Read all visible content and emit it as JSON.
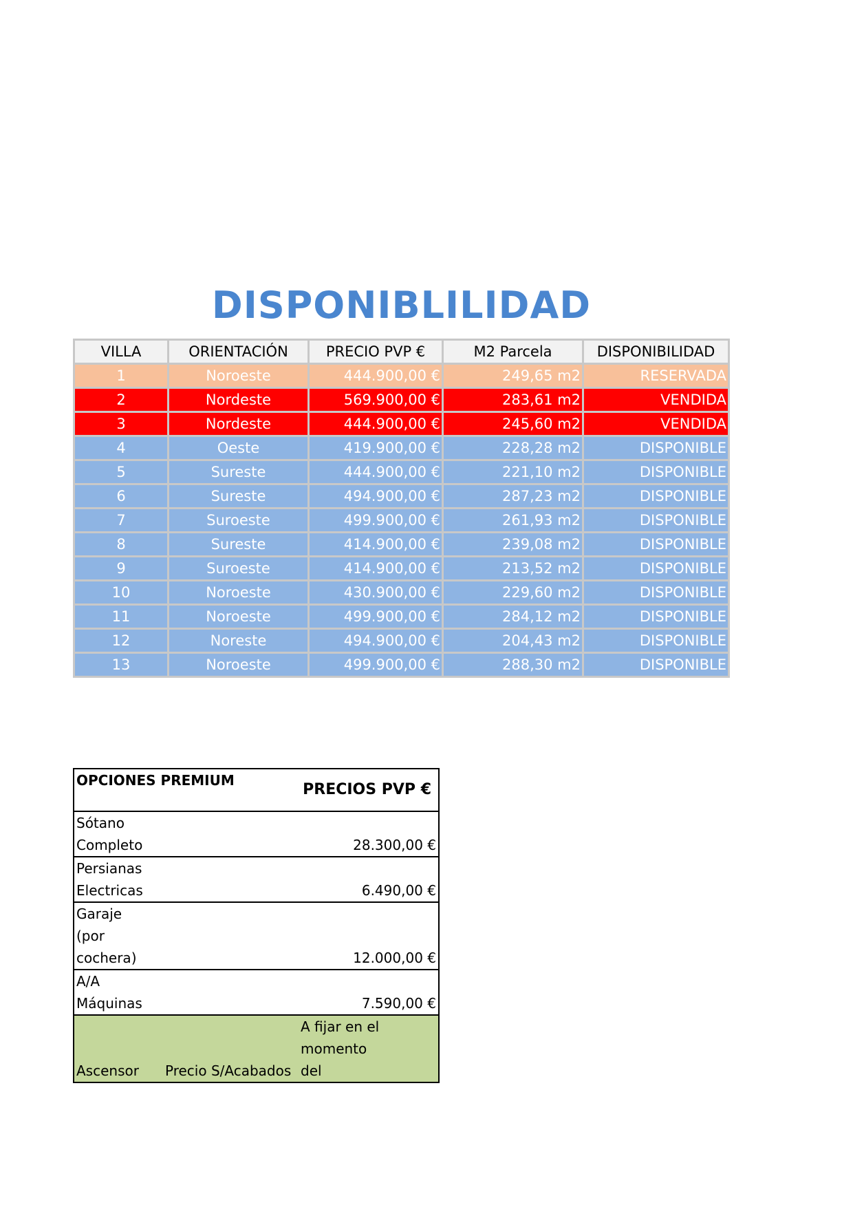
{
  "title": "DISPONIBLILIDAD",
  "colors": {
    "title": "#4A86CF",
    "reservada": "#F8C09A",
    "vendida": "#FF0000",
    "disponible": "#8EB4E3",
    "header": "#F2F2F2",
    "ascensor_row": "#C4D79B"
  },
  "availability": {
    "headers": [
      "VILLA",
      "ORIENTACIÓN",
      "PRECIO PVP €",
      "M2 Parcela",
      "DISPONIBILIDAD"
    ],
    "rows": [
      {
        "villa": "1",
        "orientacion": "Noroeste",
        "precio": "444.900,00 €",
        "m2": "249,65 m2",
        "estado": "RESERVADA",
        "status": "reservada"
      },
      {
        "villa": "2",
        "orientacion": "Nordeste",
        "precio": "569.900,00 €",
        "m2": "283,61 m2",
        "estado": "VENDIDA",
        "status": "vendida"
      },
      {
        "villa": "3",
        "orientacion": "Nordeste",
        "precio": "444.900,00 €",
        "m2": "245,60 m2",
        "estado": "VENDIDA",
        "status": "vendida"
      },
      {
        "villa": "4",
        "orientacion": "Oeste",
        "precio": "419.900,00 €",
        "m2": "228,28 m2",
        "estado": "DISPONIBLE",
        "status": "disponible"
      },
      {
        "villa": "5",
        "orientacion": "Sureste",
        "precio": "444.900,00 €",
        "m2": "221,10 m2",
        "estado": "DISPONIBLE",
        "status": "disponible"
      },
      {
        "villa": "6",
        "orientacion": "Sureste",
        "precio": "494.900,00 €",
        "m2": "287,23 m2",
        "estado": "DISPONIBLE",
        "status": "disponible"
      },
      {
        "villa": "7",
        "orientacion": "Suroeste",
        "precio": "499.900,00 €",
        "m2": "261,93 m2",
        "estado": "DISPONIBLE",
        "status": "disponible"
      },
      {
        "villa": "8",
        "orientacion": "Sureste",
        "precio": "414.900,00 €",
        "m2": "239,08 m2",
        "estado": "DISPONIBLE",
        "status": "disponible"
      },
      {
        "villa": "9",
        "orientacion": "Suroeste",
        "precio": "414.900,00 €",
        "m2": "213,52 m2",
        "estado": "DISPONIBLE",
        "status": "disponible"
      },
      {
        "villa": "10",
        "orientacion": "Noroeste",
        "precio": "430.900,00 €",
        "m2": "229,60 m2",
        "estado": "DISPONIBLE",
        "status": "disponible"
      },
      {
        "villa": "11",
        "orientacion": "Noroeste",
        "precio": "499.900,00 €",
        "m2": "284,12 m2",
        "estado": "DISPONIBLE",
        "status": "disponible"
      },
      {
        "villa": "12",
        "orientacion": "Noreste",
        "precio": "494.900,00 €",
        "m2": "204,43 m2",
        "estado": "DISPONIBLE",
        "status": "disponible"
      },
      {
        "villa": "13",
        "orientacion": "Noroeste",
        "precio": "499.900,00 €",
        "m2": "288,30 m2",
        "estado": "DISPONIBLE",
        "status": "disponible"
      }
    ]
  },
  "options": {
    "header_label": "OPCIONES PREMIUM",
    "header_price": "PRECIOS PVP €",
    "rows": [
      {
        "name": "Sótano Completo",
        "price": "28.300,00 €"
      },
      {
        "name": "Persianas Electricas",
        "price": "6.490,00 €"
      },
      {
        "name": "Garaje (por cochera)",
        "price": "12.000,00 €"
      },
      {
        "name": "A/A Máquinas",
        "price": "7.590,00 €"
      }
    ],
    "last_row": {
      "name": "Ascensor",
      "note": "Precio S/Acabados",
      "price": "A fijar en el momento del"
    }
  }
}
